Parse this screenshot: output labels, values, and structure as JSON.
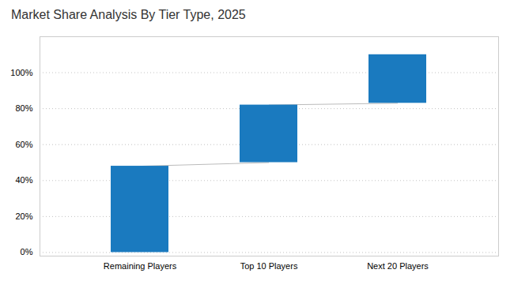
{
  "chart_data": {
    "type": "bar",
    "title": "Market Share Analysis By Tier Type, 2025",
    "categories": [
      "Remaining Players",
      "Top 10 Players",
      "Next 20 Players"
    ],
    "bottoms": [
      0,
      50,
      83
    ],
    "tops": [
      48,
      82,
      110
    ],
    "color": "#1a7abf",
    "ylim": [
      -2,
      120
    ],
    "yticks": [
      {
        "value": 0,
        "label": "0%"
      },
      {
        "value": 20,
        "label": "20%"
      },
      {
        "value": 40,
        "label": "40%"
      },
      {
        "value": 60,
        "label": "60%"
      },
      {
        "value": 80,
        "label": "80%"
      },
      {
        "value": 100,
        "label": "100%"
      }
    ],
    "grid": true
  }
}
